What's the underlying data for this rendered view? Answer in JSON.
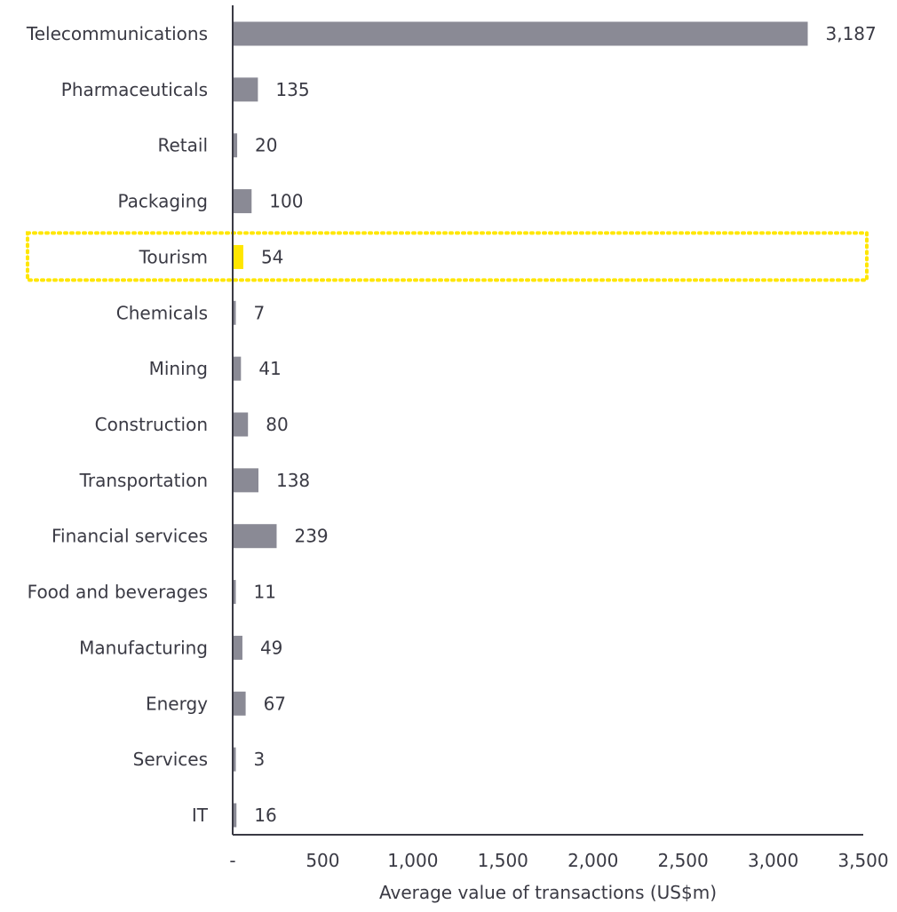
{
  "chart_data": {
    "type": "bar",
    "orientation": "horizontal",
    "categories": [
      "Telecommunications",
      "Pharmaceuticals",
      "Retail",
      "Packaging",
      "Tourism",
      "Chemicals",
      "Mining",
      "Construction",
      "Transportation",
      "Financial services",
      "Food and beverages",
      "Manufacturing",
      "Energy",
      "Services",
      "IT"
    ],
    "values": [
      3187,
      135,
      20,
      100,
      54,
      7,
      41,
      80,
      138,
      239,
      11,
      49,
      67,
      3,
      16
    ],
    "value_labels": [
      "3,187",
      "135",
      "20",
      "100",
      "54",
      "7",
      "41",
      "80",
      "138",
      "239",
      "11",
      "49",
      "67",
      "3",
      "16"
    ],
    "highlight": "Tourism",
    "xlim": [
      0,
      3500
    ],
    "xticks": [
      0,
      500,
      1000,
      1500,
      2000,
      2500,
      3000,
      3500
    ],
    "xtick_labels": [
      "-",
      "500",
      "1,000",
      "1,500",
      "2,000",
      "2,500",
      "3,000",
      "3,500"
    ],
    "xlabel": "Average value of transactions (US$m)",
    "title": "",
    "grid": false,
    "colors": {
      "bar": "#8a8a95",
      "highlight_bar": "#ffe600",
      "highlight_box": "#ffe600",
      "axis": "#3a3a44",
      "text": "#3a3a44"
    }
  }
}
